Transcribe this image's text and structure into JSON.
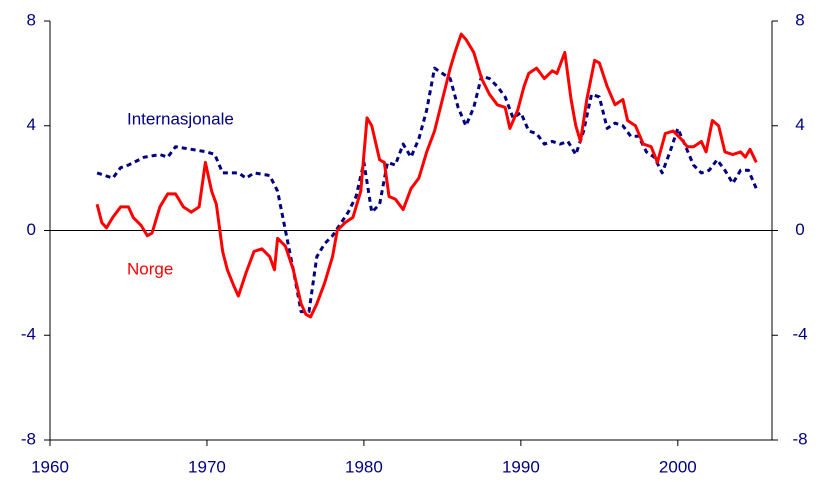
{
  "chart_data": {
    "type": "line",
    "xlim": [
      1960,
      2006
    ],
    "xticks": [
      1960,
      1970,
      1980,
      1990,
      2000
    ],
    "ylim": [
      -8,
      8
    ],
    "yticks": [
      -8,
      -4,
      0,
      4,
      8
    ],
    "y2lim": [
      -8,
      8
    ],
    "y2ticks": [
      -8,
      -4,
      0,
      4,
      8
    ],
    "series": [
      {
        "name": "Norge",
        "color": "#ff0000",
        "style": "solid",
        "x": [
          1963.0,
          1963.3,
          1963.6,
          1964.0,
          1964.5,
          1965.0,
          1965.3,
          1965.8,
          1966.2,
          1966.5,
          1967.0,
          1967.5,
          1968.0,
          1968.5,
          1969.0,
          1969.5,
          1969.9,
          1970.3,
          1970.6,
          1971.0,
          1971.3,
          1971.7,
          1972.0,
          1972.5,
          1973.0,
          1973.5,
          1974.0,
          1974.3,
          1974.5,
          1975.0,
          1975.5,
          1976.0,
          1976.3,
          1976.6,
          1977.0,
          1977.5,
          1978.0,
          1978.3,
          1978.8,
          1979.3,
          1979.8,
          1980.2,
          1980.5,
          1981.0,
          1981.3,
          1981.6,
          1982.0,
          1982.5,
          1983.0,
          1983.5,
          1984.0,
          1984.5,
          1985.0,
          1985.5,
          1985.8,
          1986.2,
          1986.5,
          1987.0,
          1987.5,
          1988.0,
          1988.5,
          1989.0,
          1989.3,
          1989.8,
          1990.2,
          1990.5,
          1991.0,
          1991.5,
          1992.0,
          1992.3,
          1992.8,
          1993.2,
          1993.5,
          1993.8,
          1994.2,
          1994.7,
          1995.0,
          1995.5,
          1996.0,
          1996.5,
          1996.8,
          1997.3,
          1997.8,
          1998.3,
          1998.7,
          1999.2,
          1999.7,
          2000.2,
          2000.6,
          2001.0,
          2001.5,
          2001.8,
          2002.2,
          2002.6,
          2003.0,
          2003.5,
          2004.0,
          2004.3,
          2004.6,
          2005.0
        ],
        "values": [
          1.0,
          0.3,
          0.1,
          0.5,
          0.9,
          0.9,
          0.5,
          0.2,
          -0.2,
          -0.1,
          0.9,
          1.4,
          1.4,
          0.9,
          0.7,
          0.9,
          2.6,
          1.5,
          1.0,
          -0.8,
          -1.5,
          -2.1,
          -2.5,
          -1.6,
          -0.8,
          -0.7,
          -1.0,
          -1.5,
          -0.3,
          -0.6,
          -1.5,
          -2.8,
          -3.2,
          -3.3,
          -2.8,
          -2.0,
          -1.0,
          0.0,
          0.3,
          0.5,
          1.5,
          4.3,
          4.0,
          2.7,
          2.6,
          1.3,
          1.2,
          0.8,
          1.6,
          2.0,
          3.0,
          3.8,
          5.0,
          6.2,
          6.8,
          7.5,
          7.3,
          6.8,
          5.8,
          5.2,
          4.8,
          4.7,
          3.9,
          4.6,
          5.5,
          6.0,
          6.2,
          5.8,
          6.1,
          6.0,
          6.8,
          5.0,
          4.0,
          3.4,
          5.0,
          6.5,
          6.4,
          5.5,
          4.8,
          5.0,
          4.2,
          4.0,
          3.3,
          3.2,
          2.6,
          3.7,
          3.8,
          3.5,
          3.2,
          3.2,
          3.4,
          3.0,
          4.2,
          4.0,
          3.0,
          2.9,
          3.0,
          2.8,
          3.1,
          2.6
        ]
      },
      {
        "name": "Internasjonale",
        "color": "#000080",
        "style": "dotted",
        "x": [
          1963.0,
          1963.5,
          1964.0,
          1964.5,
          1965.0,
          1966.0,
          1967.0,
          1967.5,
          1968.0,
          1969.0,
          1970.0,
          1970.5,
          1971.0,
          1972.0,
          1972.5,
          1973.0,
          1974.0,
          1974.5,
          1975.0,
          1975.5,
          1976.0,
          1976.5,
          1977.0,
          1977.5,
          1978.0,
          1979.0,
          1979.5,
          1980.0,
          1980.5,
          1981.0,
          1981.5,
          1982.0,
          1982.5,
          1983.0,
          1983.5,
          1984.0,
          1984.5,
          1985.0,
          1985.5,
          1986.0,
          1986.5,
          1987.0,
          1987.5,
          1988.0,
          1988.5,
          1989.0,
          1989.5,
          1990.0,
          1990.5,
          1991.0,
          1991.5,
          1992.0,
          1992.5,
          1993.0,
          1993.5,
          1994.0,
          1994.5,
          1995.0,
          1995.5,
          1996.0,
          1996.5,
          1997.0,
          1997.5,
          1998.0,
          1998.5,
          1999.0,
          1999.5,
          2000.0,
          2000.5,
          2001.0,
          2001.5,
          2002.0,
          2002.5,
          2003.0,
          2003.5,
          2004.0,
          2004.5,
          2005.0
        ],
        "values": [
          2.2,
          2.1,
          2.0,
          2.4,
          2.5,
          2.8,
          2.9,
          2.8,
          3.2,
          3.1,
          3.0,
          2.9,
          2.2,
          2.2,
          2.0,
          2.2,
          2.1,
          1.5,
          0.0,
          -1.5,
          -3.1,
          -3.1,
          -1.0,
          -0.5,
          -0.2,
          0.7,
          1.3,
          2.6,
          0.7,
          1.0,
          2.6,
          2.5,
          3.3,
          2.8,
          3.5,
          4.6,
          6.2,
          6.0,
          5.8,
          4.7,
          4.0,
          4.7,
          5.9,
          5.8,
          5.5,
          5.1,
          4.3,
          4.5,
          3.8,
          3.7,
          3.3,
          3.4,
          3.3,
          3.4,
          2.9,
          3.8,
          5.2,
          5.1,
          3.9,
          4.1,
          4.0,
          3.6,
          3.6,
          3.0,
          2.8,
          2.2,
          3.0,
          3.9,
          3.2,
          2.5,
          2.2,
          2.3,
          2.7,
          2.3,
          1.8,
          2.3,
          2.3,
          1.6
        ]
      }
    ]
  }
}
